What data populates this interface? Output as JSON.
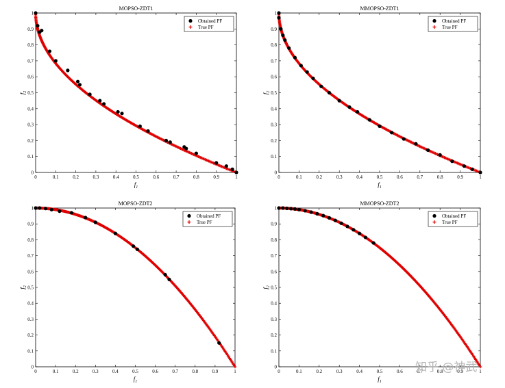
{
  "watermark": "知乎 @神武",
  "colors": {
    "obtained": "#000000",
    "true_pf": "#e00000",
    "axis": "#000000"
  },
  "chart_data": [
    {
      "type": "scatter",
      "title": "MOPSO-ZDT1",
      "xlabel": "f1",
      "ylabel": "f2",
      "xlim": [
        0,
        1
      ],
      "ylim": [
        0,
        1
      ],
      "xticks": [
        "0",
        "0.1",
        "0.2",
        "0.3",
        "0.4",
        "0.5",
        "0.6",
        "0.7",
        "0.8",
        "0.9",
        "1"
      ],
      "yticks": [
        "0",
        "0.1",
        "0.2",
        "0.3",
        "0.4",
        "0.5",
        "0.6",
        "0.7",
        "0.8",
        "0.9",
        "1"
      ],
      "grid": false,
      "legend_position": "top-right",
      "true_pf_function": "1-sqrt(x)",
      "series": [
        {
          "name": "Obtained PF",
          "marker": "dot",
          "x": [
            0.0,
            0.01,
            0.03,
            0.02,
            0.07,
            0.1,
            0.16,
            0.21,
            0.22,
            0.27,
            0.32,
            0.34,
            0.41,
            0.43,
            0.52,
            0.56,
            0.65,
            0.67,
            0.74,
            0.75,
            0.8,
            0.9,
            0.95,
            0.98,
            1.0
          ],
          "y": [
            1.0,
            0.92,
            0.89,
            0.88,
            0.76,
            0.7,
            0.64,
            0.57,
            0.55,
            0.49,
            0.45,
            0.43,
            0.38,
            0.37,
            0.29,
            0.26,
            0.2,
            0.19,
            0.16,
            0.15,
            0.12,
            0.06,
            0.04,
            0.02,
            0.0
          ]
        },
        {
          "name": "True PF",
          "marker": "plus"
        }
      ]
    },
    {
      "type": "scatter",
      "title": "MMOPSO-ZDT1",
      "xlabel": "f1",
      "ylabel": "f2",
      "xlim": [
        0,
        1
      ],
      "ylim": [
        0,
        1
      ],
      "xticks": [
        "0",
        "0.1",
        "0.2",
        "0.3",
        "0.4",
        "0.5",
        "0.6",
        "0.7",
        "0.8",
        "0.9",
        "1"
      ],
      "yticks": [
        "0",
        "0.1",
        "0.2",
        "0.3",
        "0.4",
        "0.5",
        "0.6",
        "0.7",
        "0.8",
        "0.9",
        "1"
      ],
      "grid": false,
      "legend_position": "top-right",
      "true_pf_function": "1-sqrt(x)",
      "series": [
        {
          "name": "Obtained PF",
          "marker": "dot",
          "x": [
            0.0,
            0.0,
            0.01,
            0.02,
            0.03,
            0.05,
            0.08,
            0.11,
            0.14,
            0.17,
            0.21,
            0.25,
            0.3,
            0.35,
            0.39,
            0.45,
            0.5,
            0.56,
            0.62,
            0.68,
            0.74,
            0.8,
            0.86,
            0.92,
            0.96,
            1.0
          ],
          "y": [
            1.0,
            0.97,
            0.9,
            0.86,
            0.83,
            0.78,
            0.72,
            0.67,
            0.63,
            0.59,
            0.54,
            0.5,
            0.45,
            0.41,
            0.38,
            0.33,
            0.29,
            0.25,
            0.21,
            0.18,
            0.14,
            0.11,
            0.07,
            0.04,
            0.02,
            0.0
          ]
        },
        {
          "name": "True PF",
          "marker": "plus"
        }
      ]
    },
    {
      "type": "scatter",
      "title": "MOPSO-ZDT2",
      "xlabel": "f1",
      "ylabel": "f2",
      "xlim": [
        0,
        1
      ],
      "ylim": [
        0,
        1
      ],
      "xticks": [
        "0",
        "0.1",
        "0.2",
        "0.3",
        "0.4",
        "0.5",
        "0.6",
        "0.7",
        "0.8",
        "0.9",
        "1"
      ],
      "yticks": [
        "0",
        "0.1",
        "0.2",
        "0.3",
        "0.4",
        "0.5",
        "0.6",
        "0.7",
        "0.8",
        "0.9",
        "1"
      ],
      "grid": false,
      "legend_position": "top-right",
      "true_pf_function": "1-x^2",
      "series": [
        {
          "name": "Obtained PF",
          "marker": "dot",
          "x": [
            0.0,
            0.02,
            0.05,
            0.08,
            0.12,
            0.18,
            0.25,
            0.3,
            0.4,
            0.49,
            0.51,
            0.65,
            0.67,
            0.92
          ],
          "y": [
            1.0,
            1.0,
            0.997,
            0.99,
            0.98,
            0.97,
            0.94,
            0.91,
            0.84,
            0.76,
            0.74,
            0.58,
            0.55,
            0.15
          ]
        },
        {
          "name": "True PF",
          "marker": "plus"
        }
      ]
    },
    {
      "type": "scatter",
      "title": "MMOPSO-ZDT2",
      "xlabel": "f1",
      "ylabel": "f2",
      "xlim": [
        0,
        1
      ],
      "ylim": [
        0,
        1
      ],
      "xticks": [
        "0",
        "0.1",
        "0.2",
        "0.3",
        "0.4",
        "0.5",
        "0.6",
        "0.7",
        "0.8",
        "0.9",
        "1"
      ],
      "yticks": [
        "0",
        "0.1",
        "0.2",
        "0.3",
        "0.4",
        "0.5",
        "0.6",
        "0.7",
        "0.8",
        "0.9",
        "1"
      ],
      "grid": false,
      "legend_position": "top-right",
      "true_pf_function": "1-x^2",
      "series": [
        {
          "name": "Obtained PF",
          "marker": "dot",
          "x": [
            0.0,
            0.02,
            0.04,
            0.06,
            0.08,
            0.1,
            0.13,
            0.16,
            0.19,
            0.22,
            0.25,
            0.28,
            0.31,
            0.34,
            0.37,
            0.4,
            0.43,
            0.47
          ],
          "y": [
            1.0,
            1.0,
            0.998,
            0.996,
            0.994,
            0.99,
            0.983,
            0.974,
            0.964,
            0.952,
            0.938,
            0.922,
            0.904,
            0.884,
            0.863,
            0.84,
            0.815,
            0.78
          ]
        },
        {
          "name": "True PF",
          "marker": "plus"
        }
      ]
    }
  ]
}
